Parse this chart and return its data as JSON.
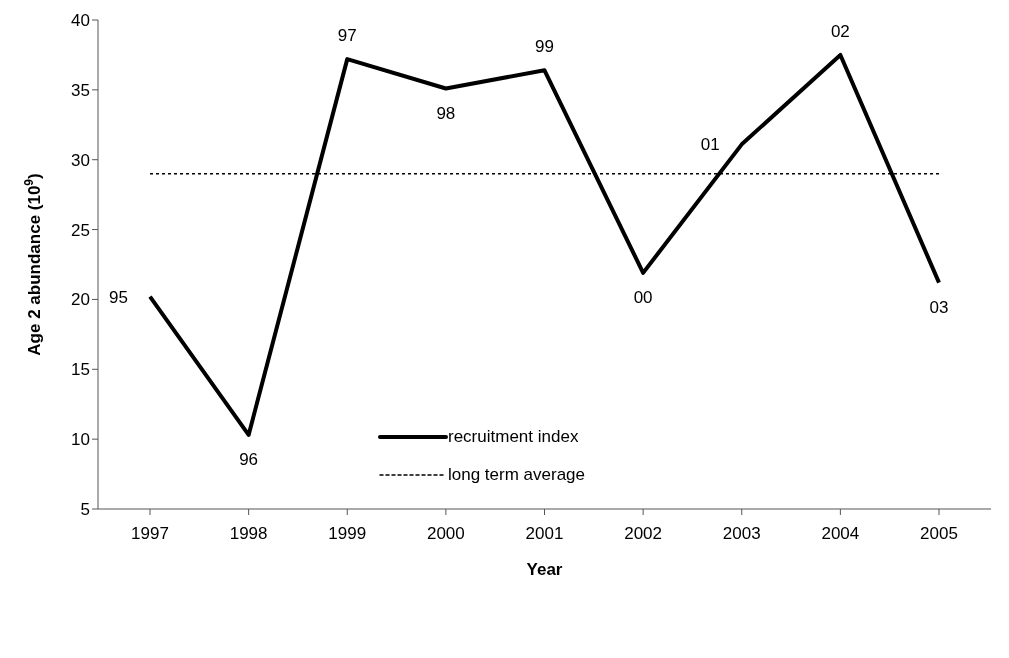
{
  "chart_data": {
    "type": "line",
    "xlabel": "Year",
    "ylabel": "Age 2 abundance (10$^{9}$)",
    "categories": [
      "1997",
      "1998",
      "1999",
      "2000",
      "2001",
      "2002",
      "2003",
      "2004",
      "2005"
    ],
    "series": [
      {
        "name": "recruitment index",
        "color": "#000000",
        "line_style": "solid",
        "values": [
          20.2,
          10.3,
          37.2,
          35.1,
          36.4,
          21.9,
          31.1,
          37.5,
          21.2
        ]
      },
      {
        "name": "long term average",
        "color": "#000000",
        "line_style": "dotted",
        "values": [
          29,
          29,
          29,
          29,
          29,
          29,
          29,
          29,
          29
        ]
      }
    ],
    "ylim": [
      5,
      40
    ],
    "yticks": [
      5,
      10,
      15,
      20,
      25,
      30,
      35,
      40
    ],
    "grid": false,
    "legend": "bottom",
    "marker": "none",
    "annotations": [
      {
        "text": "95",
        "x": "1997",
        "y": 20.2
      },
      {
        "text": "96",
        "x": "1998",
        "y": 10.3
      },
      {
        "text": "97",
        "x": "1999",
        "y": 37.2
      },
      {
        "text": "98",
        "x": "2000",
        "y": 35.1
      },
      {
        "text": "99",
        "x": "2001",
        "y": 36.4
      },
      {
        "text": "00",
        "x": "2002",
        "y": 21.9
      },
      {
        "text": "01",
        "x": "2003",
        "y": 31.1
      },
      {
        "text": "02",
        "x": "2004",
        "y": 37.5
      },
      {
        "text": "03",
        "x": "2005",
        "y": 21.2
      }
    ]
  }
}
